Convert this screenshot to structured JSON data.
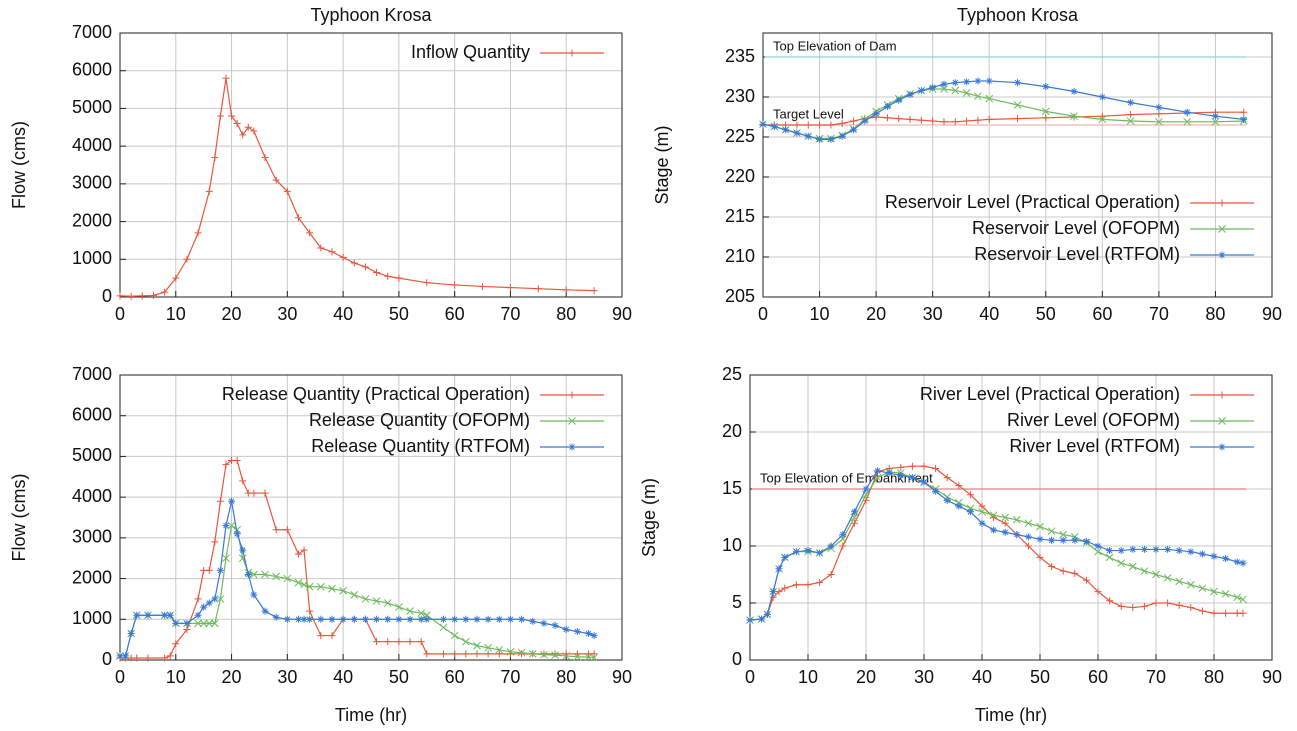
{
  "chart_data": [
    {
      "type": "line",
      "title": "Typhoon Krosa",
      "ylabel": "Flow (cms)",
      "x": [
        0,
        2,
        4,
        6,
        8,
        10,
        12,
        14,
        16,
        17,
        18,
        19,
        20,
        21,
        22,
        23,
        24,
        26,
        28,
        30,
        32,
        34,
        36,
        38,
        40,
        42,
        44,
        46,
        48,
        50,
        55,
        60,
        65,
        70,
        75,
        80,
        85
      ],
      "series": [
        {
          "name": "Inflow Quantity",
          "color": "#e8563c",
          "marker": "plus",
          "values": [
            30,
            20,
            30,
            40,
            130,
            500,
            1000,
            1700,
            2800,
            3700,
            4800,
            5800,
            4800,
            4600,
            4300,
            4500,
            4400,
            3700,
            3100,
            2800,
            2100,
            1700,
            1300,
            1200,
            1050,
            900,
            800,
            650,
            550,
            500,
            380,
            320,
            280,
            250,
            220,
            190,
            170
          ]
        }
      ],
      "xlim": [
        0,
        90
      ],
      "xticks": [
        0,
        10,
        20,
        30,
        40,
        50,
        60,
        70,
        80,
        90
      ],
      "ylim": [
        0,
        7000
      ],
      "yticks": [
        0,
        1000,
        2000,
        3000,
        4000,
        5000,
        6000,
        7000
      ],
      "grid": true,
      "legend": "upper right"
    },
    {
      "type": "line",
      "title": "Typhoon Krosa",
      "ylabel": "Stage (m)",
      "x": [
        0,
        2,
        4,
        6,
        8,
        10,
        12,
        14,
        16,
        18,
        20,
        22,
        24,
        26,
        28,
        30,
        32,
        34,
        36,
        38,
        40,
        45,
        50,
        55,
        60,
        65,
        70,
        75,
        80,
        85
      ],
      "series": [
        {
          "name": "Reservoir Level (Practical Operation)",
          "color": "#e8563c",
          "marker": "plus",
          "values": [
            226.5,
            226.5,
            226.5,
            226.5,
            226.5,
            226.5,
            226.5,
            226.7,
            227,
            227.3,
            227.5,
            227.4,
            227.3,
            227.2,
            227.1,
            227,
            226.9,
            226.9,
            227,
            227.1,
            227.2,
            227.3,
            227.4,
            227.5,
            227.6,
            227.8,
            227.9,
            228,
            228.1,
            228.1
          ]
        },
        {
          "name": "Reservoir Level (OFOPM)",
          "color": "#6dbb5a",
          "marker": "cross",
          "values": [
            226.6,
            226.3,
            225.9,
            225.5,
            225.1,
            224.8,
            224.8,
            225.2,
            226,
            227.2,
            228.2,
            229,
            229.8,
            230.4,
            230.8,
            231,
            231,
            230.8,
            230.5,
            230.1,
            229.8,
            229,
            228.2,
            227.6,
            227.2,
            227,
            226.9,
            226.9,
            226.9,
            227
          ]
        },
        {
          "name": "Reservoir Level (RTFOM)",
          "color": "#3a78d8",
          "marker": "star",
          "values": [
            226.6,
            226.3,
            225.9,
            225.5,
            225.1,
            224.7,
            224.7,
            225.1,
            225.9,
            227,
            227.9,
            228.8,
            229.6,
            230.3,
            230.8,
            231.2,
            231.6,
            231.8,
            231.9,
            232,
            232,
            231.8,
            231.3,
            230.7,
            230,
            229.3,
            228.7,
            228.1,
            227.6,
            227.2
          ]
        }
      ],
      "hlines": [
        {
          "label": "Top Elevation of Dam",
          "value": 235,
          "color": "#8fd3d0"
        },
        {
          "label": "Target Level",
          "value": 226.5,
          "color": "#f5b5b5"
        }
      ],
      "xlim": [
        0,
        90
      ],
      "xticks": [
        0,
        10,
        20,
        30,
        40,
        50,
        60,
        70,
        80,
        90
      ],
      "ylim": [
        205,
        238
      ],
      "yticks": [
        205,
        210,
        215,
        220,
        225,
        230,
        235
      ],
      "grid": true,
      "legend": "lower right"
    },
    {
      "type": "line",
      "xlabel": "Time (hr)",
      "ylabel": "Flow (cms)",
      "x": [
        0,
        1,
        2,
        3,
        5,
        8,
        9,
        10,
        12,
        14,
        15,
        16,
        17,
        18,
        19,
        20,
        21,
        22,
        23,
        24,
        26,
        28,
        30,
        32,
        33,
        34,
        36,
        38,
        40,
        42,
        44,
        46,
        48,
        50,
        52,
        54,
        55,
        58,
        60,
        62,
        64,
        66,
        68,
        70,
        72,
        74,
        76,
        78,
        80,
        82,
        84,
        85
      ],
      "series": [
        {
          "name": "Release Quantity (Practical Operation)",
          "color": "#e8563c",
          "marker": "plus",
          "values": [
            50,
            50,
            50,
            50,
            50,
            50,
            100,
            400,
            750,
            1500,
            2200,
            2200,
            2900,
            3900,
            4800,
            4900,
            4900,
            4400,
            4100,
            4100,
            4100,
            3200,
            3200,
            2600,
            2700,
            1200,
            600,
            600,
            1000,
            1000,
            1000,
            450,
            450,
            450,
            450,
            450,
            150,
            150,
            150,
            150,
            150,
            150,
            150,
            150,
            150,
            150,
            150,
            150,
            150,
            150,
            150,
            150
          ]
        },
        {
          "name": "Release Quantity (OFOPM)",
          "color": "#6dbb5a",
          "marker": "cross",
          "values": [
            100,
            100,
            650,
            1100,
            1100,
            1100,
            1100,
            900,
            900,
            900,
            900,
            900,
            900,
            1500,
            2500,
            3300,
            3200,
            2500,
            2150,
            2100,
            2100,
            2050,
            2000,
            1900,
            1850,
            1800,
            1800,
            1750,
            1700,
            1600,
            1500,
            1450,
            1400,
            1300,
            1200,
            1150,
            1100,
            800,
            600,
            450,
            350,
            300,
            250,
            200,
            180,
            150,
            130,
            120,
            100,
            80,
            70,
            60
          ]
        },
        {
          "name": "Release Quantity (RTFOM)",
          "color": "#3a78d8",
          "marker": "star",
          "values": [
            100,
            100,
            650,
            1100,
            1100,
            1100,
            1100,
            900,
            900,
            1100,
            1300,
            1400,
            1500,
            2200,
            3300,
            3900,
            3100,
            2700,
            2100,
            1600,
            1200,
            1050,
            1000,
            1000,
            1000,
            1000,
            1000,
            1000,
            1000,
            1000,
            1000,
            1000,
            1000,
            1000,
            1000,
            1000,
            1000,
            1000,
            1000,
            1000,
            1000,
            1000,
            1000,
            1000,
            1000,
            950,
            900,
            850,
            750,
            700,
            650,
            600
          ]
        }
      ],
      "xlim": [
        0,
        90
      ],
      "xticks": [
        0,
        10,
        20,
        30,
        40,
        50,
        60,
        70,
        80,
        90
      ],
      "ylim": [
        0,
        7000
      ],
      "yticks": [
        0,
        1000,
        2000,
        3000,
        4000,
        5000,
        6000,
        7000
      ],
      "grid": true,
      "legend": "upper right"
    },
    {
      "type": "line",
      "xlabel": "Time (hr)",
      "ylabel": "Stage (m)",
      "x": [
        0,
        2,
        3,
        4,
        5,
        6,
        8,
        10,
        12,
        14,
        16,
        18,
        20,
        22,
        24,
        26,
        28,
        30,
        32,
        34,
        36,
        38,
        40,
        42,
        44,
        46,
        48,
        50,
        52,
        54,
        56,
        58,
        60,
        62,
        64,
        66,
        68,
        70,
        72,
        74,
        76,
        78,
        80,
        82,
        84,
        85
      ],
      "series": [
        {
          "name": "River Level (Practical Operation)",
          "color": "#e8563c",
          "marker": "plus",
          "values": [
            3.5,
            3.6,
            4,
            5.5,
            6,
            6.3,
            6.6,
            6.6,
            6.8,
            7.5,
            10,
            12,
            14,
            16.5,
            16.8,
            16.9,
            17,
            17,
            16.8,
            16,
            15.3,
            14.5,
            13.5,
            12.5,
            12,
            11,
            10,
            9,
            8.2,
            7.8,
            7.6,
            7,
            6,
            5.2,
            4.7,
            4.6,
            4.7,
            5,
            5,
            4.8,
            4.6,
            4.3,
            4.1,
            4.1,
            4.1,
            4.1
          ]
        },
        {
          "name": "River Level (OFOPM)",
          "color": "#6dbb5a",
          "marker": "cross",
          "values": [
            3.5,
            3.6,
            4,
            6,
            8,
            9,
            9.5,
            9.5,
            9.4,
            9.8,
            10.6,
            12.5,
            14.5,
            16,
            16.5,
            16.4,
            16,
            15.6,
            15,
            14.3,
            13.8,
            13.3,
            13,
            12.7,
            12.5,
            12.3,
            12,
            11.7,
            11.3,
            11,
            10.8,
            10.3,
            9.5,
            9,
            8.5,
            8.2,
            7.8,
            7.5,
            7.2,
            6.9,
            6.6,
            6.3,
            6,
            5.8,
            5.5,
            5.3
          ]
        },
        {
          "name": "River Level (RTFOM)",
          "color": "#3a78d8",
          "marker": "star",
          "values": [
            3.5,
            3.6,
            4,
            6,
            8,
            9,
            9.5,
            9.6,
            9.4,
            10,
            11,
            13,
            15,
            16.6,
            16.4,
            16.2,
            16,
            15.6,
            14.8,
            14,
            13.5,
            13,
            12,
            11.4,
            11.2,
            11,
            10.8,
            10.6,
            10.5,
            10.5,
            10.5,
            10.4,
            10,
            9.6,
            9.6,
            9.7,
            9.7,
            9.7,
            9.7,
            9.6,
            9.5,
            9.3,
            9.1,
            8.9,
            8.6,
            8.5
          ]
        }
      ],
      "hlines": [
        {
          "label": "Top Elevation of Embankment",
          "value": 15,
          "color": "#e88080"
        }
      ],
      "xlim": [
        0,
        90
      ],
      "xticks": [
        0,
        10,
        20,
        30,
        40,
        50,
        60,
        70,
        80,
        90
      ],
      "ylim": [
        0,
        25
      ],
      "yticks": [
        0,
        5,
        10,
        15,
        20,
        25
      ],
      "grid": true,
      "legend": "upper right"
    }
  ]
}
